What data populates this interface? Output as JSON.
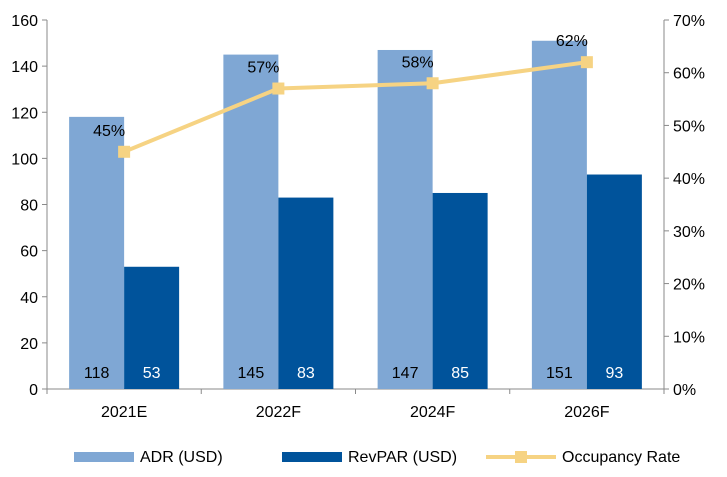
{
  "chart_data": {
    "type": "bar",
    "categories": [
      "2021E",
      "2022F",
      "2024F",
      "2026F"
    ],
    "series": [
      {
        "name": "ADR (USD)",
        "kind": "bar",
        "axis": "left",
        "values": [
          118,
          145,
          147,
          151
        ],
        "color": "#7fa7d4",
        "label_color": "#000000"
      },
      {
        "name": "RevPAR (USD)",
        "kind": "bar",
        "axis": "left",
        "values": [
          53,
          83,
          85,
          93
        ],
        "color": "#00539b",
        "label_color": "#ffffff"
      },
      {
        "name": "Occupancy Rate",
        "kind": "line",
        "axis": "right",
        "values": [
          45,
          57,
          58,
          62
        ],
        "labels": [
          "45%",
          "57%",
          "58%",
          "62%"
        ],
        "color": "#f6d383"
      }
    ],
    "y_left": {
      "min": 0,
      "max": 160,
      "ticks": [
        "0",
        "20",
        "40",
        "60",
        "80",
        "100",
        "120",
        "140",
        "160"
      ]
    },
    "y_right": {
      "min": 0,
      "max": 70,
      "ticks": [
        "0%",
        "10%",
        "20%",
        "30%",
        "40%",
        "50%",
        "60%",
        "70%"
      ]
    },
    "grid": false,
    "legend": "bottom"
  }
}
